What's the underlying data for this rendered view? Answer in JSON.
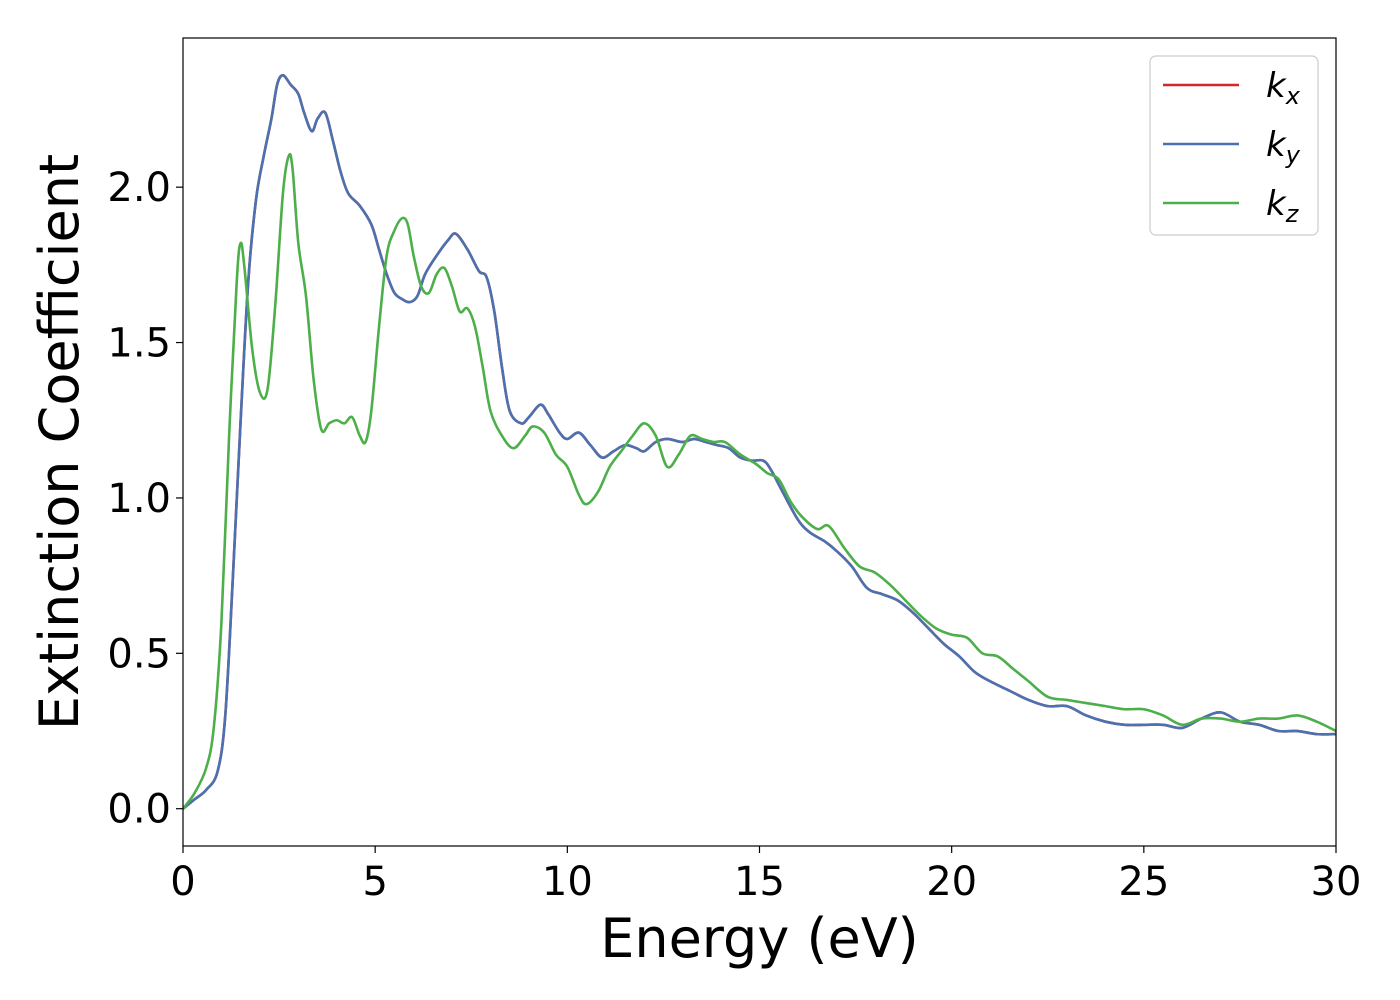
{
  "chart_data": {
    "type": "line",
    "xlabel": "Energy (eV)",
    "ylabel": "Extinction Coefficient",
    "xlim": [
      0,
      30
    ],
    "ylim": [
      -0.12,
      2.48
    ],
    "xticks": [
      0,
      5,
      10,
      15,
      20,
      25,
      30
    ],
    "xtick_labels": [
      "0",
      "5",
      "10",
      "15",
      "20",
      "25",
      "30"
    ],
    "yticks": [
      0.0,
      0.5,
      1.0,
      1.5,
      2.0
    ],
    "ytick_labels": [
      "0.0",
      "0.5",
      "1.0",
      "1.5",
      "2.0"
    ],
    "grid": false,
    "legend_position": "top-right",
    "series": [
      {
        "name": "kx",
        "legend_base": "k",
        "legend_sub": "x",
        "color": "#d62728",
        "x": [
          0,
          0.3,
          0.6,
          0.9,
          1.1,
          1.3,
          1.5,
          1.7,
          1.9,
          2.1,
          2.3,
          2.45,
          2.6,
          2.8,
          3.0,
          3.15,
          3.35,
          3.5,
          3.7,
          3.9,
          4.1,
          4.3,
          4.6,
          4.9,
          5.1,
          5.3,
          5.5,
          5.7,
          5.9,
          6.1,
          6.3,
          6.6,
          6.9,
          7.1,
          7.4,
          7.7,
          7.9,
          8.1,
          8.3,
          8.5,
          8.8,
          9.0,
          9.3,
          9.5,
          9.8,
          10.0,
          10.3,
          10.6,
          10.9,
          11.2,
          11.5,
          11.8,
          12.0,
          12.3,
          12.6,
          13.0,
          13.3,
          13.6,
          13.9,
          14.2,
          14.5,
          14.8,
          15.1,
          15.3,
          15.6,
          16.0,
          16.3,
          16.7,
          17.0,
          17.4,
          17.8,
          18.2,
          18.6,
          19.0,
          19.4,
          19.8,
          20.2,
          20.6,
          21.0,
          21.5,
          22.0,
          22.5,
          23.0,
          23.5,
          24.0,
          24.5,
          25.0,
          25.5,
          26.0,
          26.5,
          27.0,
          27.5,
          28.0,
          28.5,
          29.0,
          29.5,
          30.0
        ],
        "y": [
          0.0,
          0.03,
          0.06,
          0.12,
          0.3,
          0.75,
          1.25,
          1.7,
          1.96,
          2.1,
          2.22,
          2.33,
          2.36,
          2.33,
          2.3,
          2.24,
          2.18,
          2.22,
          2.24,
          2.15,
          2.05,
          1.98,
          1.94,
          1.88,
          1.8,
          1.72,
          1.66,
          1.64,
          1.63,
          1.65,
          1.72,
          1.78,
          1.83,
          1.85,
          1.8,
          1.73,
          1.71,
          1.6,
          1.42,
          1.28,
          1.24,
          1.26,
          1.3,
          1.27,
          1.21,
          1.19,
          1.21,
          1.17,
          1.13,
          1.15,
          1.17,
          1.16,
          1.15,
          1.18,
          1.19,
          1.18,
          1.19,
          1.18,
          1.17,
          1.16,
          1.13,
          1.12,
          1.12,
          1.09,
          1.02,
          0.93,
          0.89,
          0.86,
          0.83,
          0.78,
          0.71,
          0.69,
          0.67,
          0.63,
          0.58,
          0.53,
          0.49,
          0.44,
          0.41,
          0.38,
          0.35,
          0.33,
          0.33,
          0.3,
          0.28,
          0.27,
          0.27,
          0.27,
          0.26,
          0.29,
          0.31,
          0.28,
          0.27,
          0.25,
          0.25,
          0.24,
          0.24
        ]
      },
      {
        "name": "ky",
        "legend_base": "k",
        "legend_sub": "y",
        "color": "#4a72b0",
        "x": [
          0,
          0.3,
          0.6,
          0.9,
          1.1,
          1.3,
          1.5,
          1.7,
          1.9,
          2.1,
          2.3,
          2.45,
          2.6,
          2.8,
          3.0,
          3.15,
          3.35,
          3.5,
          3.7,
          3.9,
          4.1,
          4.3,
          4.6,
          4.9,
          5.1,
          5.3,
          5.5,
          5.7,
          5.9,
          6.1,
          6.3,
          6.6,
          6.9,
          7.1,
          7.4,
          7.7,
          7.9,
          8.1,
          8.3,
          8.5,
          8.8,
          9.0,
          9.3,
          9.5,
          9.8,
          10.0,
          10.3,
          10.6,
          10.9,
          11.2,
          11.5,
          11.8,
          12.0,
          12.3,
          12.6,
          13.0,
          13.3,
          13.6,
          13.9,
          14.2,
          14.5,
          14.8,
          15.1,
          15.3,
          15.6,
          16.0,
          16.3,
          16.7,
          17.0,
          17.4,
          17.8,
          18.2,
          18.6,
          19.0,
          19.4,
          19.8,
          20.2,
          20.6,
          21.0,
          21.5,
          22.0,
          22.5,
          23.0,
          23.5,
          24.0,
          24.5,
          25.0,
          25.5,
          26.0,
          26.5,
          27.0,
          27.5,
          28.0,
          28.5,
          29.0,
          29.5,
          30.0
        ],
        "y": [
          0.0,
          0.03,
          0.06,
          0.12,
          0.3,
          0.75,
          1.25,
          1.7,
          1.96,
          2.1,
          2.22,
          2.33,
          2.36,
          2.33,
          2.3,
          2.24,
          2.18,
          2.22,
          2.24,
          2.15,
          2.05,
          1.98,
          1.94,
          1.88,
          1.8,
          1.72,
          1.66,
          1.64,
          1.63,
          1.65,
          1.72,
          1.78,
          1.83,
          1.85,
          1.8,
          1.73,
          1.71,
          1.6,
          1.42,
          1.28,
          1.24,
          1.26,
          1.3,
          1.27,
          1.21,
          1.19,
          1.21,
          1.17,
          1.13,
          1.15,
          1.17,
          1.16,
          1.15,
          1.18,
          1.19,
          1.18,
          1.19,
          1.18,
          1.17,
          1.16,
          1.13,
          1.12,
          1.12,
          1.09,
          1.02,
          0.93,
          0.89,
          0.86,
          0.83,
          0.78,
          0.71,
          0.69,
          0.67,
          0.63,
          0.58,
          0.53,
          0.49,
          0.44,
          0.41,
          0.38,
          0.35,
          0.33,
          0.33,
          0.3,
          0.28,
          0.27,
          0.27,
          0.27,
          0.26,
          0.29,
          0.31,
          0.28,
          0.27,
          0.25,
          0.25,
          0.24,
          0.24
        ]
      },
      {
        "name": "kz",
        "legend_base": "k",
        "legend_sub": "z",
        "color": "#4daf4a",
        "x": [
          0,
          0.3,
          0.6,
          0.8,
          1.0,
          1.2,
          1.4,
          1.5,
          1.6,
          1.8,
          2.0,
          2.2,
          2.4,
          2.6,
          2.75,
          2.85,
          3.0,
          3.2,
          3.4,
          3.6,
          3.8,
          4.0,
          4.2,
          4.4,
          4.6,
          4.75,
          4.9,
          5.1,
          5.3,
          5.5,
          5.7,
          5.85,
          6.0,
          6.2,
          6.4,
          6.6,
          6.8,
          7.0,
          7.2,
          7.4,
          7.6,
          7.8,
          8.0,
          8.3,
          8.6,
          8.9,
          9.1,
          9.4,
          9.7,
          10.0,
          10.3,
          10.5,
          10.8,
          11.1,
          11.4,
          11.7,
          12.0,
          12.3,
          12.6,
          12.9,
          13.2,
          13.5,
          13.8,
          14.1,
          14.5,
          14.9,
          15.2,
          15.5,
          15.8,
          16.1,
          16.5,
          16.8,
          17.2,
          17.6,
          18.0,
          18.4,
          18.8,
          19.2,
          19.6,
          20.0,
          20.4,
          20.8,
          21.2,
          21.6,
          22.0,
          22.5,
          23.0,
          23.5,
          24.0,
          24.5,
          25.0,
          25.5,
          26.0,
          26.5,
          27.0,
          27.5,
          28.0,
          28.5,
          29.0,
          29.5,
          30.0
        ],
        "y": [
          0.0,
          0.05,
          0.13,
          0.26,
          0.6,
          1.2,
          1.7,
          1.82,
          1.74,
          1.48,
          1.34,
          1.35,
          1.62,
          1.98,
          2.1,
          2.06,
          1.82,
          1.65,
          1.38,
          1.22,
          1.24,
          1.25,
          1.24,
          1.26,
          1.2,
          1.18,
          1.28,
          1.55,
          1.78,
          1.86,
          1.9,
          1.88,
          1.78,
          1.68,
          1.66,
          1.72,
          1.74,
          1.68,
          1.6,
          1.61,
          1.55,
          1.42,
          1.28,
          1.2,
          1.16,
          1.2,
          1.23,
          1.21,
          1.14,
          1.1,
          1.01,
          0.98,
          1.02,
          1.1,
          1.15,
          1.2,
          1.24,
          1.2,
          1.1,
          1.14,
          1.2,
          1.19,
          1.18,
          1.18,
          1.14,
          1.11,
          1.08,
          1.06,
          0.99,
          0.94,
          0.9,
          0.91,
          0.84,
          0.78,
          0.76,
          0.72,
          0.67,
          0.62,
          0.58,
          0.56,
          0.55,
          0.5,
          0.49,
          0.45,
          0.41,
          0.36,
          0.35,
          0.34,
          0.33,
          0.32,
          0.32,
          0.3,
          0.27,
          0.29,
          0.29,
          0.28,
          0.29,
          0.29,
          0.3,
          0.28,
          0.25
        ]
      }
    ]
  }
}
